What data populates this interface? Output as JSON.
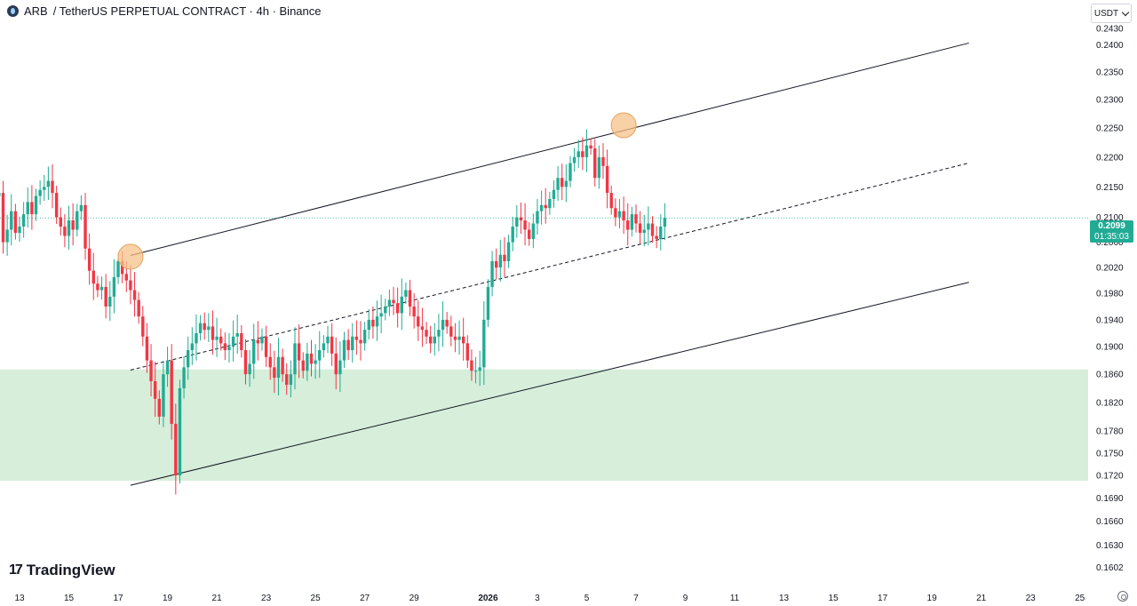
{
  "header": {
    "symbol": "ARB",
    "pair_text": "/ TetherUS PERPETUAL CONTRACT · 4h · Binance"
  },
  "currency_button": "USDT",
  "price_tag": {
    "price": "0.2099",
    "countdown": "01:35:03"
  },
  "branding": {
    "logo_mark": "17",
    "logo_text": "TradingView"
  },
  "colors": {
    "up": "#22ab94",
    "down": "#f23645",
    "zone_fill": "#d6eeda",
    "highlight_circle": "#f6c18a",
    "axis_text": "#131722"
  },
  "chart_data": {
    "type": "candlestick",
    "timeframe": "4h",
    "y_axis": {
      "scale": "log",
      "range": [
        0.1585,
        0.2437
      ],
      "tick_labels": [
        "0.2430",
        "0.2400",
        "0.2350",
        "0.2300",
        "0.2250",
        "0.2200",
        "0.2150",
        "0.2100",
        "0.2060",
        "0.2020",
        "0.1980",
        "0.1940",
        "0.1900",
        "0.1860",
        "0.1820",
        "0.1780",
        "0.1750",
        "0.1720",
        "0.1690",
        "0.1660",
        "0.1630",
        "0.1602"
      ]
    },
    "x_axis": {
      "range": [
        "2025-12-12",
        "2026-01-26"
      ],
      "tick_labels": [
        {
          "label": "13",
          "date": "2025-12-13"
        },
        {
          "label": "15",
          "date": "2025-12-15"
        },
        {
          "label": "17",
          "date": "2025-12-17"
        },
        {
          "label": "19",
          "date": "2025-12-19"
        },
        {
          "label": "21",
          "date": "2025-12-21"
        },
        {
          "label": "23",
          "date": "2025-12-23"
        },
        {
          "label": "25",
          "date": "2025-12-25"
        },
        {
          "label": "27",
          "date": "2025-12-27"
        },
        {
          "label": "29",
          "date": "2025-12-29"
        },
        {
          "label": "2026",
          "date": "2026-01-01",
          "bold": true
        },
        {
          "label": "3",
          "date": "2026-01-03"
        },
        {
          "label": "5",
          "date": "2026-01-05"
        },
        {
          "label": "7",
          "date": "2026-01-07"
        },
        {
          "label": "9",
          "date": "2026-01-09"
        },
        {
          "label": "11",
          "date": "2026-01-11"
        },
        {
          "label": "13",
          "date": "2026-01-13"
        },
        {
          "label": "15",
          "date": "2026-01-15"
        },
        {
          "label": "17",
          "date": "2026-01-17"
        },
        {
          "label": "19",
          "date": "2026-01-19"
        },
        {
          "label": "21",
          "date": "2026-01-21"
        },
        {
          "label": "23",
          "date": "2026-01-23"
        },
        {
          "label": "25",
          "date": "2026-01-25"
        }
      ]
    },
    "last_price": 0.2099,
    "candles_note": "approx. 4h OHLC path, 2025-12-12 to 2026-01-10",
    "price_path": {
      "start": "2025-12-12",
      "points_per_day": 6,
      "values": [
        0.2135,
        0.214,
        0.206,
        0.208,
        0.211,
        0.2075,
        0.2085,
        0.2105,
        0.2125,
        0.2105,
        0.2135,
        0.2145,
        0.215,
        0.216,
        0.214,
        0.21,
        0.2085,
        0.207,
        0.2095,
        0.208,
        0.211,
        0.212,
        0.205,
        0.2015,
        0.1995,
        0.1985,
        0.199,
        0.196,
        0.1975,
        0.2005,
        0.203,
        0.201,
        0.2,
        0.1985,
        0.197,
        0.1945,
        0.1915,
        0.188,
        0.185,
        0.1825,
        0.18,
        0.186,
        0.188,
        0.179,
        0.172,
        0.184,
        0.187,
        0.1895,
        0.1905,
        0.192,
        0.1935,
        0.1925,
        0.193,
        0.191,
        0.1915,
        0.1905,
        0.1895,
        0.19,
        0.1915,
        0.192,
        0.1895,
        0.186,
        0.1875,
        0.191,
        0.1905,
        0.1915,
        0.1885,
        0.187,
        0.1855,
        0.1885,
        0.186,
        0.1845,
        0.186,
        0.1905,
        0.188,
        0.1865,
        0.189,
        0.1875,
        0.188,
        0.1895,
        0.1905,
        0.1915,
        0.189,
        0.186,
        0.188,
        0.191,
        0.1895,
        0.1915,
        0.191,
        0.1905,
        0.1925,
        0.194,
        0.193,
        0.1945,
        0.195,
        0.196,
        0.197,
        0.1965,
        0.195,
        0.1975,
        0.1985,
        0.196,
        0.1945,
        0.193,
        0.1925,
        0.1915,
        0.1905,
        0.1915,
        0.1925,
        0.194,
        0.193,
        0.1915,
        0.191,
        0.1915,
        0.1905,
        0.188,
        0.1865,
        0.1865,
        0.187,
        0.194,
        0.199,
        0.203,
        0.202,
        0.204,
        0.203,
        0.206,
        0.2085,
        0.21,
        0.2095,
        0.208,
        0.2065,
        0.209,
        0.211,
        0.212,
        0.2115,
        0.213,
        0.2145,
        0.2165,
        0.215,
        0.216,
        0.219,
        0.22,
        0.221,
        0.22,
        0.222,
        0.2215,
        0.2165,
        0.22,
        0.2185,
        0.214,
        0.2115,
        0.21,
        0.211,
        0.2095,
        0.208,
        0.2105,
        0.209,
        0.2075,
        0.208,
        0.209,
        0.207,
        0.2065,
        0.2085,
        0.2099
      ]
    },
    "drawings": [
      {
        "type": "trend_line",
        "name": "upper channel line",
        "from": {
          "date": "2025-12-17 12:00",
          "price": 0.2039
        },
        "to": {
          "date": "2026-01-20 12:00",
          "price": 0.2403
        }
      },
      {
        "type": "trend_line",
        "name": "channel midline",
        "style": "dashed",
        "from": {
          "date": "2025-12-17 12:00",
          "price": 0.1866
        },
        "to": {
          "date": "2026-01-20 12:00",
          "price": 0.219
        }
      },
      {
        "type": "trend_line",
        "name": "lower channel line",
        "from": {
          "date": "2025-12-17 12:00",
          "price": 0.1707
        },
        "to": {
          "date": "2026-01-20 12:00",
          "price": 0.1997
        }
      },
      {
        "type": "zone",
        "name": "support zone",
        "price_range": [
          0.1713,
          0.1867
        ]
      },
      {
        "type": "circle",
        "name": "touch point 1",
        "at": {
          "date": "2025-12-17 12:00",
          "price": 0.2037
        }
      },
      {
        "type": "circle",
        "name": "touch point 2",
        "at": {
          "date": "2026-01-06 12:00",
          "price": 0.2255
        }
      },
      {
        "type": "horizontal_line",
        "name": "current price line",
        "style": "dotted",
        "price": 0.2099
      }
    ]
  }
}
